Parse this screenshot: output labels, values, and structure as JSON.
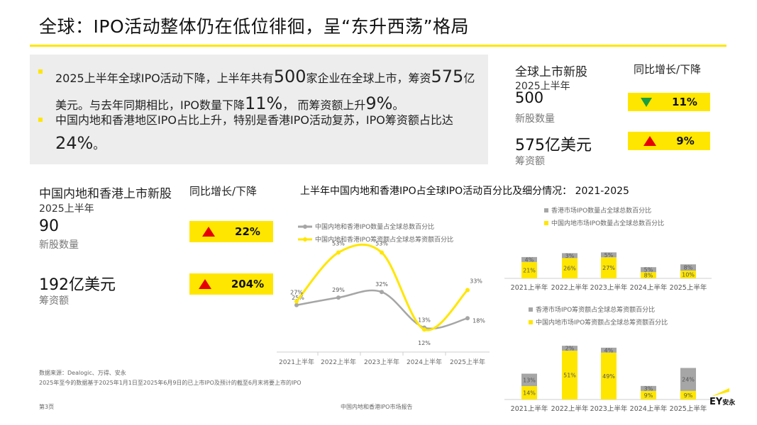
{
  "header": {
    "title": "全球：IPO活动整体仍在低位徘徊，呈“东升西荡”格局"
  },
  "summary": {
    "bullet1": {
      "p1": "2025上半年全球IPO活动下降，上半年共有",
      "n1": "500",
      "p2": "家企业在全球上市，筹资",
      "n2": "575",
      "p3": "亿美元。与去年同期相比，IPO数量下降",
      "n3": "11%",
      "p4": "， 而筹资额上升",
      "n4": "9%",
      "p5": "。"
    },
    "bullet2": {
      "p1": "中国内地和香港地区IPO占比上升，特别是香港IPO活动复苏，IPO筹资额占比达",
      "n1": "24%",
      "p2": "。"
    }
  },
  "global_panel": {
    "heading": "全球上市新股",
    "change_heading": "同比增长/下降",
    "period": "2025上半年",
    "count_value": "500",
    "count_label": "新股数量",
    "count_change": "11%",
    "count_direction": "down",
    "amount_value": "575亿美元",
    "amount_label": "筹资额",
    "amount_change": "9%",
    "amount_direction": "up"
  },
  "china_panel": {
    "heading": "中国内地和香港上市新股",
    "change_heading": "同比增长/下降",
    "period": "2025上半年",
    "count_value": "90",
    "count_label": "新股数量",
    "count_change": "22%",
    "count_direction": "up",
    "amount_value": "192亿美元",
    "amount_label": "筹资额",
    "amount_change": "204%",
    "amount_direction": "up"
  },
  "chart_section": {
    "title": "上半年中国内地和香港IPO占全球IPO活动百分比及细分情况： 2021-2025"
  },
  "chart_data": [
    {
      "type": "line",
      "categories": [
        "2021上半年",
        "2022上半年",
        "2023上半年",
        "2024上半年",
        "2025上半年"
      ],
      "series": [
        {
          "name": "中国内地和香港IPO数量占全球总数百分比",
          "values": [
            25,
            29,
            32,
            13,
            18
          ],
          "labels": [
            "25%",
            "29%",
            "32%",
            "13%",
            "18%"
          ],
          "color": "#a6a6a6"
        },
        {
          "name": "中国内地和香港IPO筹资额占全球总筹资额百分比",
          "values": [
            27,
            53,
            53,
            12,
            33
          ],
          "labels": [
            "27%",
            "53%",
            "53%",
            "12%",
            "33%"
          ],
          "color": "#ffe600"
        }
      ],
      "ylim": [
        0,
        60
      ],
      "grid": false,
      "legend": "top-left"
    },
    {
      "type": "bar",
      "stacked": true,
      "categories": [
        "2021上半年",
        "2022上半年",
        "2023上半年",
        "2024上半年",
        "2025上半年"
      ],
      "series": [
        {
          "name": "中国内地市场IPO数量占全球总数百分比",
          "values": [
            21,
            26,
            27,
            8,
            10
          ],
          "labels": [
            "21%",
            "26%",
            "27%",
            "8%",
            "10%"
          ],
          "color": "#ffe600"
        },
        {
          "name": "香港市场IPO数量占全球总数百分比",
          "values": [
            4,
            3,
            5,
            5,
            8
          ],
          "labels": [
            "4%",
            "3%",
            "5%",
            "5%",
            "8%"
          ],
          "color": "#a6a6a6"
        }
      ],
      "legend": "top",
      "legend_order": [
        1,
        0
      ]
    },
    {
      "type": "bar",
      "stacked": true,
      "categories": [
        "2021上半年",
        "2022上半年",
        "2023上半年",
        "2024上半年",
        "2025上半年"
      ],
      "series": [
        {
          "name": "中国内地市场IPO筹资额占全球总筹资额百分比",
          "values": [
            14,
            51,
            49,
            9,
            9
          ],
          "labels": [
            "14%",
            "51%",
            "49%",
            "9%",
            "9%"
          ],
          "color": "#ffe600"
        },
        {
          "name": "香港市场IPO筹资额占全球总筹资额百分比",
          "values": [
            13,
            2,
            4,
            3,
            24
          ],
          "labels": [
            "13%",
            "2%",
            "4%",
            "3%",
            "24%"
          ],
          "color": "#a6a6a6"
        }
      ],
      "legend": "top",
      "legend_order": [
        1,
        0
      ]
    }
  ],
  "footer": {
    "source": "数据来源：Dealogic、万得、安永",
    "note": "2025年至今的数据基于2025年1月1日至2025年6月9日的已上市IPO及预计的截至6月末将要上市的IPO",
    "page": "第3页",
    "report": "中国内地和香港IPO市场报告",
    "logo_mark": "EY",
    "logo_text": "安永"
  }
}
